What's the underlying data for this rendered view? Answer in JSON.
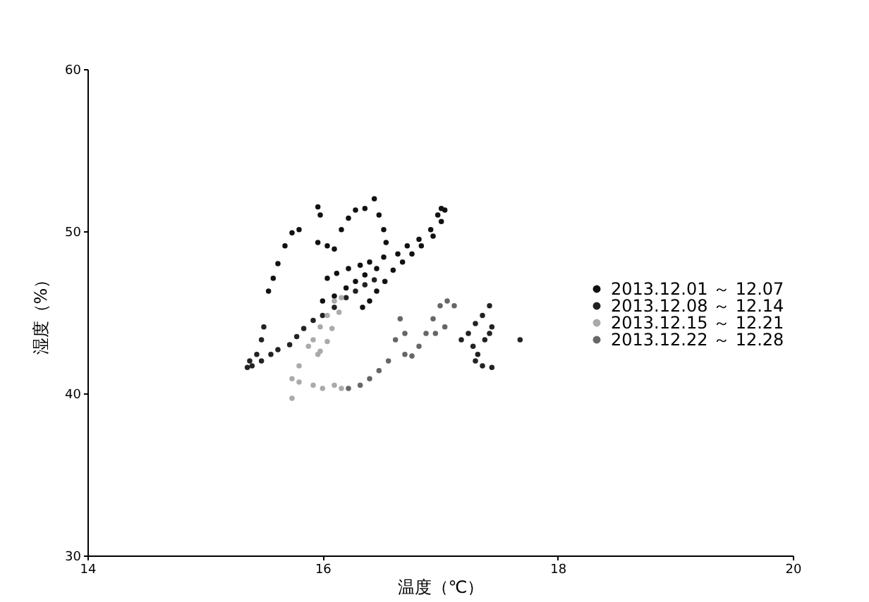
{
  "chart_data": {
    "type": "scatter",
    "xlabel": "温度（℃）",
    "ylabel": "湿度（%）",
    "xlim": [
      14,
      20
    ],
    "ylim": [
      30,
      60
    ],
    "xticks": [
      14,
      16,
      18,
      20
    ],
    "yticks": [
      30,
      40,
      50,
      60
    ],
    "grid": false,
    "legend": "right",
    "marker": "circle",
    "series": [
      {
        "name": "2013.12.01 ～ 12.07",
        "color": "#111111",
        "x": [
          15.54,
          15.58,
          15.62,
          15.68,
          15.74,
          15.8,
          15.96,
          15.98,
          15.96,
          16.04,
          16.1,
          16.16,
          16.22,
          16.28,
          16.36,
          16.44,
          16.48,
          16.52,
          16.54,
          16.52,
          16.46,
          16.36,
          16.28,
          16.2,
          16.1,
          16.0,
          16.04,
          16.12,
          16.22,
          16.32,
          16.4,
          16.64,
          16.72,
          16.82,
          16.92,
          16.98,
          17.01,
          17.04,
          17.01,
          16.94,
          16.84,
          16.76,
          16.68,
          16.6,
          16.53,
          16.46,
          16.4,
          16.34
        ],
        "values": [
          46.3,
          47.1,
          48.0,
          49.1,
          49.9,
          50.1,
          51.5,
          51.0,
          49.3,
          49.1,
          48.9,
          50.1,
          50.8,
          51.3,
          51.4,
          52.0,
          51.0,
          50.1,
          49.3,
          48.4,
          47.7,
          47.3,
          46.9,
          46.5,
          46.0,
          45.7,
          47.1,
          47.4,
          47.7,
          47.9,
          48.1,
          48.6,
          49.1,
          49.5,
          50.1,
          51.0,
          51.4,
          51.3,
          50.6,
          49.7,
          49.1,
          48.6,
          48.1,
          47.6,
          46.9,
          46.3,
          45.7,
          45.3
        ]
      },
      {
        "name": "2013.12.08 ～ 12.14",
        "color": "#222222",
        "x": [
          15.5,
          15.48,
          15.44,
          15.38,
          15.36,
          15.4,
          15.48,
          15.56,
          15.62,
          15.72,
          15.78,
          15.84,
          15.92,
          16.0,
          16.1,
          16.2,
          16.28,
          16.36,
          16.44,
          17.18,
          17.24,
          17.3,
          17.36,
          17.42,
          17.28,
          17.32,
          17.3,
          17.36,
          17.44,
          17.38,
          17.44,
          17.42,
          17.68
        ],
        "values": [
          44.1,
          43.3,
          42.4,
          42.0,
          41.6,
          41.7,
          42.0,
          42.4,
          42.7,
          43.0,
          43.5,
          44.0,
          44.5,
          44.8,
          45.3,
          45.9,
          46.3,
          46.7,
          47.0,
          43.3,
          43.7,
          44.3,
          44.8,
          45.4,
          42.9,
          42.4,
          42.0,
          41.7,
          41.6,
          43.3,
          44.1,
          43.7,
          43.3
        ]
      },
      {
        "name": "2013.12.15 ～ 12.21",
        "color": "#aaaaaa",
        "x": [
          15.96,
          15.92,
          15.98,
          16.04,
          16.1,
          16.16,
          16.14,
          16.08,
          16.04,
          15.98,
          15.88,
          15.74,
          15.8,
          15.92,
          16.0,
          16.1,
          16.16,
          15.74,
          15.8
        ],
        "values": [
          42.4,
          43.3,
          44.1,
          44.8,
          45.7,
          45.9,
          45.0,
          44.0,
          43.2,
          42.6,
          42.9,
          40.9,
          40.7,
          40.5,
          40.3,
          40.5,
          40.3,
          39.7,
          41.7
        ]
      },
      {
        "name": "2013.12.22 ～ 12.28",
        "color": "#666666",
        "x": [
          16.22,
          16.32,
          16.4,
          16.48,
          16.56,
          16.62,
          16.66,
          16.7,
          16.7,
          16.76,
          16.82,
          16.88,
          16.94,
          17.0,
          17.06,
          17.12,
          17.04,
          16.96
        ],
        "values": [
          40.3,
          40.5,
          40.9,
          41.4,
          42.0,
          43.3,
          44.6,
          43.7,
          42.4,
          42.3,
          42.9,
          43.7,
          44.6,
          45.4,
          45.7,
          45.4,
          44.1,
          43.7
        ]
      }
    ]
  }
}
